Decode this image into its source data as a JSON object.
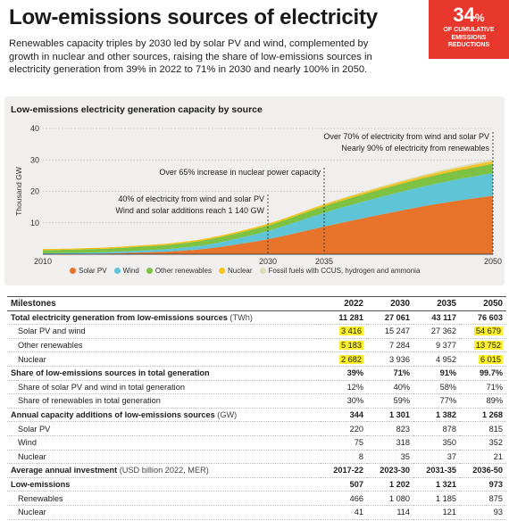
{
  "header": {
    "title": "Low-emissions sources of electricity",
    "lead": "Renewables capacity triples by 2030 led by solar PV and wind, complemented by growth in nuclear and other sources, raising the share of low-emissions sources in electricity generation from 39% in 2022 to 71% in 2030 and nearly 100% in 2050."
  },
  "badge": {
    "value": "34",
    "unit": "%",
    "caption_lines": [
      "OF CUMULATIVE",
      "EMISSIONS",
      "REDUCTIONS"
    ],
    "color": "#e8372c"
  },
  "chart_data": {
    "type": "area",
    "stacked": true,
    "title": "Low-emissions electricity generation capacity by source",
    "ylabel": "Thousand GW",
    "xlabel": "",
    "xlim": [
      2010,
      2050
    ],
    "ylim": [
      0,
      40
    ],
    "yticks": [
      10,
      20,
      30,
      40
    ],
    "xticks": [
      2010,
      2030,
      2035,
      2050
    ],
    "grid": true,
    "legend_position": "bottom",
    "x": [
      2010,
      2015,
      2020,
      2022,
      2025,
      2030,
      2035,
      2040,
      2045,
      2050
    ],
    "series": [
      {
        "name": "Solar PV",
        "color": "#e8732a",
        "values": [
          0.1,
          0.2,
          0.7,
          1.05,
          2.0,
          4.8,
          8.8,
          12.6,
          16.0,
          18.6
        ]
      },
      {
        "name": "Wind",
        "color": "#5ec4d6",
        "values": [
          0.2,
          0.4,
          0.73,
          0.9,
          1.3,
          2.6,
          4.4,
          5.6,
          6.5,
          7.2
        ]
      },
      {
        "name": "Other renewables",
        "color": "#7dc242",
        "values": [
          1.0,
          1.1,
          1.3,
          1.4,
          1.6,
          1.8,
          2.1,
          2.4,
          2.7,
          3.0
        ]
      },
      {
        "name": "Nuclear",
        "color": "#f6c21c",
        "values": [
          0.35,
          0.36,
          0.38,
          0.4,
          0.44,
          0.5,
          0.56,
          0.62,
          0.7,
          0.78
        ]
      },
      {
        "name": "Fossil fuels with CCUS, hydrogen and ammonia",
        "color": "#dcdcb0",
        "values": [
          0,
          0,
          0,
          0,
          0.01,
          0.05,
          0.15,
          0.3,
          0.45,
          0.6
        ]
      }
    ],
    "annotations": [
      {
        "year": 2030,
        "lines": [
          "40% of electricity from wind and solar PV",
          "Wind and solar additions reach 1 140 GW"
        ]
      },
      {
        "year": 2035,
        "lines": [
          "Over 65% increase in nuclear power capacity"
        ]
      },
      {
        "year": 2050,
        "lines": [
          "Over 70% of electricity from wind and solar PV",
          "Nearly 90% of electricity from renewables"
        ]
      }
    ]
  },
  "table": {
    "header": {
      "label": "Milestones",
      "cols": [
        "2022",
        "2030",
        "2035",
        "2050"
      ]
    },
    "rows": [
      {
        "label": "Total electricity generation from low-emissions sources",
        "unit": "(TWh)",
        "style": "bold",
        "values": [
          "11 281",
          "27 061",
          "43 117",
          "76 603"
        ],
        "highlight": [
          false,
          false,
          false,
          false
        ]
      },
      {
        "label": "Solar PV and wind",
        "unit": "",
        "style": "sub",
        "values": [
          "3 416",
          "15 247",
          "27 362",
          "54 679"
        ],
        "highlight": [
          true,
          false,
          false,
          true
        ]
      },
      {
        "label": "Other renewables",
        "unit": "",
        "style": "sub",
        "values": [
          "5 183",
          "7 284",
          "9 377",
          "13 752"
        ],
        "highlight": [
          true,
          false,
          false,
          true
        ]
      },
      {
        "label": "Nuclear",
        "unit": "",
        "style": "sub",
        "values": [
          "2 682",
          "3 936",
          "4 952",
          "6 015"
        ],
        "highlight": [
          true,
          false,
          false,
          true
        ]
      },
      {
        "label": "Share of low-emissions sources in total generation",
        "unit": "",
        "style": "bold",
        "values": [
          "39%",
          "71%",
          "91%",
          "99.7%"
        ],
        "highlight": [
          false,
          false,
          false,
          false
        ]
      },
      {
        "label": "Share of solar PV and wind in total generation",
        "unit": "",
        "style": "sub",
        "values": [
          "12%",
          "40%",
          "58%",
          "71%"
        ],
        "highlight": [
          false,
          false,
          false,
          false
        ]
      },
      {
        "label": "Share of renewables in total generation",
        "unit": "",
        "style": "sub",
        "values": [
          "30%",
          "59%",
          "77%",
          "89%"
        ],
        "highlight": [
          false,
          false,
          false,
          false
        ]
      },
      {
        "label": "Annual capacity additions of low-emissions sources",
        "unit": "(GW)",
        "style": "bold",
        "values": [
          "344",
          "1 301",
          "1 382",
          "1 268"
        ],
        "highlight": [
          false,
          false,
          false,
          false
        ]
      },
      {
        "label": "Solar PV",
        "unit": "",
        "style": "sub",
        "values": [
          "220",
          "823",
          "878",
          "815"
        ],
        "highlight": [
          false,
          false,
          false,
          false
        ]
      },
      {
        "label": "Wind",
        "unit": "",
        "style": "sub",
        "values": [
          "75",
          "318",
          "350",
          "352"
        ],
        "highlight": [
          false,
          false,
          false,
          false
        ]
      },
      {
        "label": "Nuclear",
        "unit": "",
        "style": "sub",
        "values": [
          "8",
          "35",
          "37",
          "21"
        ],
        "highlight": [
          false,
          false,
          false,
          false
        ]
      },
      {
        "label": "Average annual investment",
        "unit": "(USD billion 2022, MER)",
        "style": "bold",
        "values": [
          "2017-22",
          "2023-30",
          "2031-35",
          "2036-50"
        ],
        "highlight": [
          false,
          false,
          false,
          false
        ]
      },
      {
        "label": "Low-emissions",
        "unit": "",
        "style": "bold",
        "values": [
          "507",
          "1 202",
          "1 321",
          "973"
        ],
        "highlight": [
          false,
          false,
          false,
          false
        ]
      },
      {
        "label": "Renewables",
        "unit": "",
        "style": "sub",
        "values": [
          "466",
          "1 080",
          "1 185",
          "875"
        ],
        "highlight": [
          false,
          false,
          false,
          false
        ]
      },
      {
        "label": "Nuclear",
        "unit": "",
        "style": "sub",
        "values": [
          "41",
          "114",
          "121",
          "93"
        ],
        "highlight": [
          false,
          false,
          false,
          false
        ]
      }
    ]
  }
}
